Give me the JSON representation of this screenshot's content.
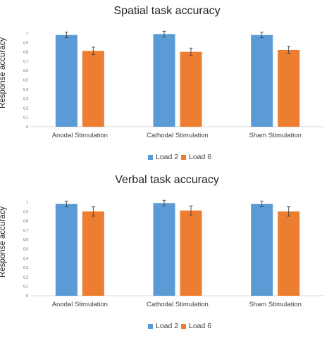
{
  "chart_data": [
    {
      "type": "bar",
      "title": "Spatial task accuracy",
      "ylabel": "Response accuracy",
      "xlabel": "",
      "categories": [
        "Anodal Stimulation",
        "Cathodal Stimulation",
        "Sham Stimulation"
      ],
      "ylim": [
        0,
        1
      ],
      "yticks": [
        "0",
        "0,1",
        "0,2",
        "0,3",
        "0,4",
        "0,5",
        "0,6",
        "0,7",
        "0,8",
        "0,9",
        "1"
      ],
      "legend_position": "bottom",
      "series": [
        {
          "name": "Load 2",
          "color": "#5b9bd5",
          "values": [
            0.98,
            0.99,
            0.98
          ],
          "errors": [
            0.03,
            0.03,
            0.03
          ]
        },
        {
          "name": "Load 6",
          "color": "#ed7d31",
          "values": [
            0.81,
            0.8,
            0.82
          ],
          "errors": [
            0.04,
            0.04,
            0.04
          ]
        }
      ]
    },
    {
      "type": "bar",
      "title": "Verbal task accuracy",
      "ylabel": "Response accuracy",
      "xlabel": "",
      "categories": [
        "Anodal Stimulation",
        "Cathodal Stimulation",
        "Sham Stimulation"
      ],
      "ylim": [
        0,
        1
      ],
      "yticks": [
        "0",
        "0,1",
        "0,2",
        "0,3",
        "0,4",
        "0,5",
        "0,6",
        "0,7",
        "0,8",
        "0,9",
        "1"
      ],
      "legend_position": "bottom",
      "series": [
        {
          "name": "Load 2",
          "color": "#5b9bd5",
          "values": [
            0.98,
            0.99,
            0.98
          ],
          "errors": [
            0.03,
            0.03,
            0.03
          ]
        },
        {
          "name": "Load 6",
          "color": "#ed7d31",
          "values": [
            0.9,
            0.91,
            0.9
          ],
          "errors": [
            0.05,
            0.05,
            0.05
          ]
        }
      ]
    }
  ]
}
